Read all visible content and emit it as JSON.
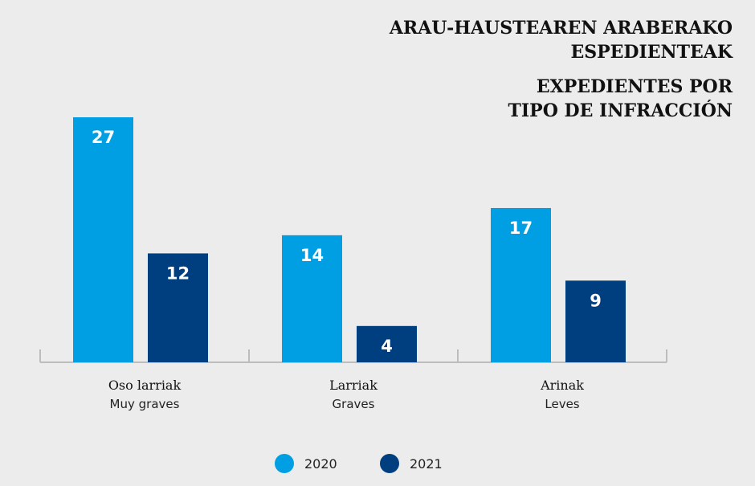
{
  "chart_data": {
    "type": "bar",
    "title": "ARAU-HAUSTEAREN ARABERAKO ESPEDIENTEAK",
    "title_lines": [
      "ARAU-HAUSTEAREN ARABERAKO",
      "ESPEDIENTEAK"
    ],
    "subtitle": "EXPEDIENTES POR TIPO DE INFRACCIÓN",
    "subtitle_lines": [
      "EXPEDIENTES POR",
      "TIPO DE INFRACCIÓN"
    ],
    "categories": [
      "Oso larriak",
      "Larriak",
      "Arinak"
    ],
    "categories_secondary": [
      "Muy graves",
      "Graves",
      "Leves"
    ],
    "series": [
      {
        "name": "2020",
        "values": [
          27,
          14,
          17
        ],
        "color": "#009fe3"
      },
      {
        "name": "2021",
        "values": [
          12,
          4,
          9
        ],
        "color": "#003f7f"
      }
    ],
    "ylim": [
      0,
      27
    ],
    "xlabel": "",
    "ylabel": "",
    "grid": false,
    "legend_position": "bottom-center",
    "label_colors": {
      "inside": "#ffffff",
      "outside": "#111111"
    }
  }
}
